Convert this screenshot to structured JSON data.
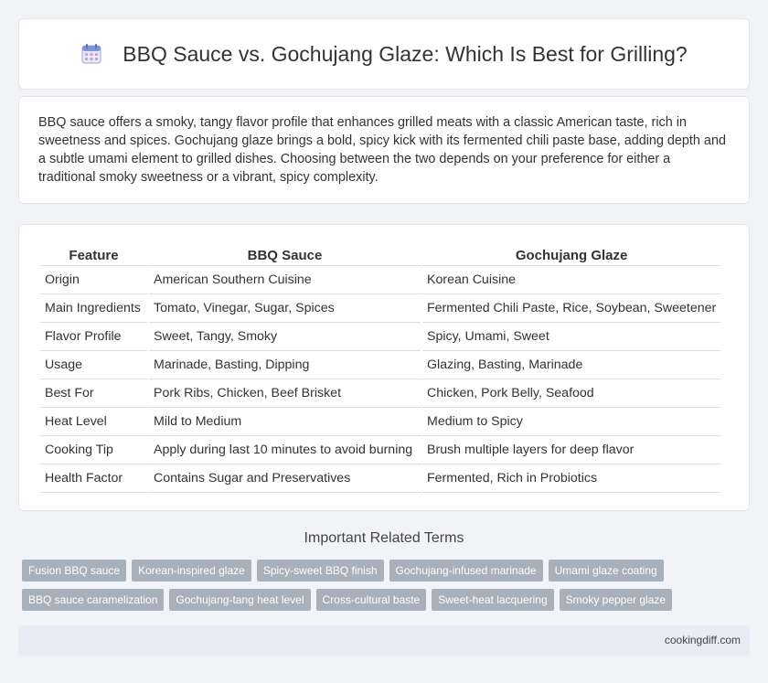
{
  "header": {
    "title": "BBQ Sauce vs. Gochujang Glaze: Which Is Best for Grilling?",
    "icon": "calendar-icon"
  },
  "intro": {
    "text": "BBQ sauce offers a smoky, tangy flavor profile that enhances grilled meats with a classic American taste, rich in sweetness and spices. Gochujang glaze brings a bold, spicy kick with its fermented chili paste base, adding depth and a subtle umami element to grilled dishes. Choosing between the two depends on your preference for either a traditional smoky sweetness or a vibrant, spicy complexity."
  },
  "table": {
    "headers": [
      "Feature",
      "BBQ Sauce",
      "Gochujang Glaze"
    ],
    "rows": [
      [
        "Origin",
        "American Southern Cuisine",
        "Korean Cuisine"
      ],
      [
        "Main Ingredients",
        "Tomato, Vinegar, Sugar, Spices",
        "Fermented Chili Paste, Rice, Soybean, Sweetener"
      ],
      [
        "Flavor Profile",
        "Sweet, Tangy, Smoky",
        "Spicy, Umami, Sweet"
      ],
      [
        "Usage",
        "Marinade, Basting, Dipping",
        "Glazing, Basting, Marinade"
      ],
      [
        "Best For",
        "Pork Ribs, Chicken, Beef Brisket",
        "Chicken, Pork Belly, Seafood"
      ],
      [
        "Heat Level",
        "Mild to Medium",
        "Medium to Spicy"
      ],
      [
        "Cooking Tip",
        "Apply during last 10 minutes to avoid burning",
        "Brush multiple layers for deep flavor"
      ],
      [
        "Health Factor",
        "Contains Sugar and Preservatives",
        "Fermented, Rich in Probiotics"
      ]
    ]
  },
  "related": {
    "title": "Important Related Terms",
    "rows": [
      [
        "Fusion BBQ sauce",
        "Korean-inspired glaze",
        "Spicy-sweet BBQ finish",
        "Gochujang-infused marinade",
        "Umami glaze coating"
      ],
      [
        "BBQ sauce caramelization",
        "Gochujang-tang heat level",
        "Cross-cultural baste",
        "Sweet-heat lacquering",
        "Smoky pepper glaze"
      ]
    ]
  },
  "footer": {
    "site": "cookingdiff.com"
  },
  "colors": {
    "tag_bg": "#a8b0ba",
    "footer_bg": "#e8ecf4",
    "page_bg": "#f1f3f6"
  }
}
